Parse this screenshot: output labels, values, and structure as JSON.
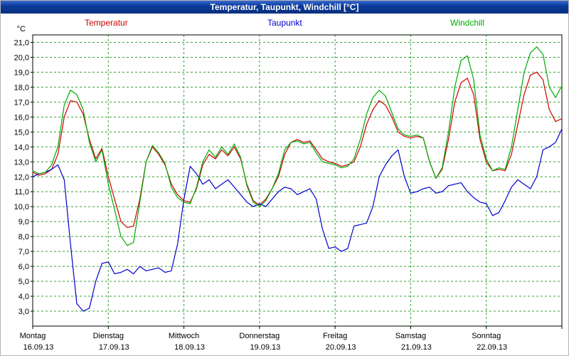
{
  "window": {
    "title": "Temperatur, Taupunkt, Windchill [°C]"
  },
  "unit_label": "°C",
  "legend": [
    {
      "label": "Temperatur",
      "color": "#cc0000"
    },
    {
      "label": "Taupunkt",
      "color": "#0000cc"
    },
    {
      "label": "Windchill",
      "color": "#00aa00"
    }
  ],
  "x_axis_days": [
    {
      "name": "Montag",
      "date": "16.09.13"
    },
    {
      "name": "Dienstag",
      "date": "17.09.13"
    },
    {
      "name": "Mittwoch",
      "date": "18.09.13"
    },
    {
      "name": "Donnerstag",
      "date": "19.09.13"
    },
    {
      "name": "Freitag",
      "date": "20.09.13"
    },
    {
      "name": "Samstag",
      "date": "21.09.13"
    },
    {
      "name": "Sonntag",
      "date": "22.09.13"
    }
  ],
  "y_tick_labels": [
    "21,0",
    "20,0",
    "19,0",
    "18,0",
    "17,0",
    "16,0",
    "15,0",
    "14,0",
    "13,0",
    "12,0",
    "11,0",
    "10,0",
    "9,0",
    "8,0",
    "7,0",
    "6,0",
    "5,0",
    "4,0",
    "3,0"
  ],
  "chart_data": {
    "type": "line",
    "title": "Temperatur, Taupunkt, Windchill [°C]",
    "xlabel": "",
    "ylabel": "°C",
    "ylim": [
      2.0,
      21.5
    ],
    "y_ticks": [
      21,
      20,
      19,
      18,
      17,
      16,
      15,
      14,
      13,
      12,
      11,
      10,
      9,
      8,
      7,
      6,
      5,
      4,
      3
    ],
    "x_hours_total": 168,
    "sampling_hours": 2,
    "grid": {
      "color": "#35a035",
      "style": "dashed"
    },
    "legend_position": "top",
    "series": [
      {
        "name": "Temperatur",
        "color": "#cc0000",
        "values": [
          12.3,
          12.1,
          12.2,
          12.5,
          13.5,
          16.0,
          17.1,
          17.0,
          16.2,
          14.5,
          13.2,
          13.9,
          12.0,
          10.5,
          9.0,
          8.6,
          8.7,
          10.5,
          13.0,
          14.0,
          13.5,
          12.8,
          11.5,
          10.8,
          10.4,
          10.3,
          11.2,
          12.8,
          13.5,
          13.2,
          13.8,
          13.4,
          14.0,
          13.2,
          11.5,
          10.4,
          10.1,
          10.5,
          11.2,
          12.0,
          13.5,
          14.3,
          14.5,
          14.3,
          14.4,
          13.8,
          13.2,
          13.0,
          12.9,
          12.7,
          12.8,
          13.0,
          14.0,
          15.5,
          16.5,
          17.1,
          16.8,
          16.0,
          15.0,
          14.7,
          14.6,
          14.7,
          14.6,
          13.0,
          11.9,
          12.5,
          14.5,
          17.0,
          18.3,
          18.6,
          17.5,
          14.5,
          13.0,
          12.4,
          12.5,
          12.4,
          13.5,
          15.5,
          17.5,
          18.8,
          19.0,
          18.5,
          16.5,
          15.7,
          15.9
        ]
      },
      {
        "name": "Taupunkt",
        "color": "#0000cc",
        "values": [
          12.0,
          12.2,
          12.3,
          12.5,
          12.8,
          11.8,
          7.5,
          3.5,
          3.0,
          3.2,
          5.0,
          6.2,
          6.3,
          5.5,
          5.6,
          5.8,
          5.5,
          6.0,
          5.7,
          5.8,
          5.9,
          5.6,
          5.7,
          7.5,
          10.5,
          12.7,
          12.2,
          11.5,
          11.8,
          11.2,
          11.5,
          11.8,
          11.3,
          10.8,
          10.3,
          10.0,
          10.2,
          10.0,
          10.5,
          11.0,
          11.3,
          11.2,
          10.8,
          11.0,
          11.2,
          10.5,
          8.5,
          7.2,
          7.3,
          7.0,
          7.2,
          8.7,
          8.8,
          8.9,
          10.0,
          12.0,
          12.8,
          13.4,
          13.8,
          12.0,
          10.9,
          11.0,
          11.2,
          11.3,
          10.9,
          11.0,
          11.4,
          11.5,
          11.6,
          11.0,
          10.6,
          10.3,
          10.2,
          9.4,
          9.6,
          10.4,
          11.3,
          11.8,
          11.5,
          11.2,
          12.0,
          13.8,
          14.0,
          14.3,
          15.2
        ]
      },
      {
        "name": "Windchill",
        "color": "#00aa00",
        "values": [
          12.4,
          12.2,
          12.3,
          12.8,
          14.0,
          16.8,
          17.8,
          17.5,
          16.5,
          14.3,
          13.0,
          13.8,
          11.5,
          9.8,
          8.0,
          7.4,
          7.6,
          10.3,
          13.0,
          14.1,
          13.6,
          12.9,
          11.3,
          10.6,
          10.3,
          10.2,
          11.3,
          13.0,
          13.8,
          13.3,
          14.0,
          13.5,
          14.2,
          13.3,
          11.4,
          10.3,
          10.0,
          10.4,
          11.2,
          12.2,
          13.8,
          14.3,
          14.4,
          14.2,
          14.3,
          13.6,
          13.0,
          12.9,
          12.8,
          12.6,
          12.7,
          13.2,
          14.5,
          16.2,
          17.3,
          17.8,
          17.4,
          16.3,
          15.2,
          14.8,
          14.7,
          14.8,
          14.6,
          13.0,
          11.9,
          12.6,
          15.0,
          18.0,
          19.8,
          20.1,
          18.5,
          14.8,
          13.2,
          12.4,
          12.6,
          12.5,
          14.0,
          16.5,
          19.0,
          20.3,
          20.7,
          20.2,
          18.0,
          17.3,
          18.1
        ]
      }
    ]
  }
}
